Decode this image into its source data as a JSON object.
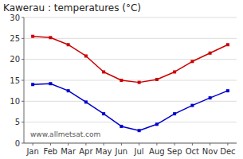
{
  "chart_data": {
    "type": "line",
    "title": "Kawerau : temperatures (°C)",
    "categories": [
      "Jan",
      "Feb",
      "Mar",
      "Apr",
      "May",
      "Jun",
      "Jul",
      "Aug",
      "Sep",
      "Oct",
      "Nov",
      "Dec"
    ],
    "series": [
      {
        "color": "#cc0000",
        "marker": "square",
        "line_style": "solid",
        "values": [
          25.5,
          25.2,
          23.5,
          20.8,
          17.0,
          15.0,
          14.5,
          15.2,
          17.0,
          19.5,
          21.5,
          23.5
        ]
      },
      {
        "color": "#0000cc",
        "marker": "square",
        "line_style": "solid",
        "values": [
          14.0,
          14.2,
          12.5,
          9.8,
          7.0,
          4.0,
          3.0,
          4.5,
          7.0,
          9.0,
          10.8,
          12.5
        ]
      }
    ],
    "ylim": [
      0,
      30
    ],
    "yticks": [
      0,
      5,
      10,
      15,
      20,
      25,
      30
    ],
    "grid": true,
    "annotations": [
      "www.allmetsat.com"
    ]
  }
}
